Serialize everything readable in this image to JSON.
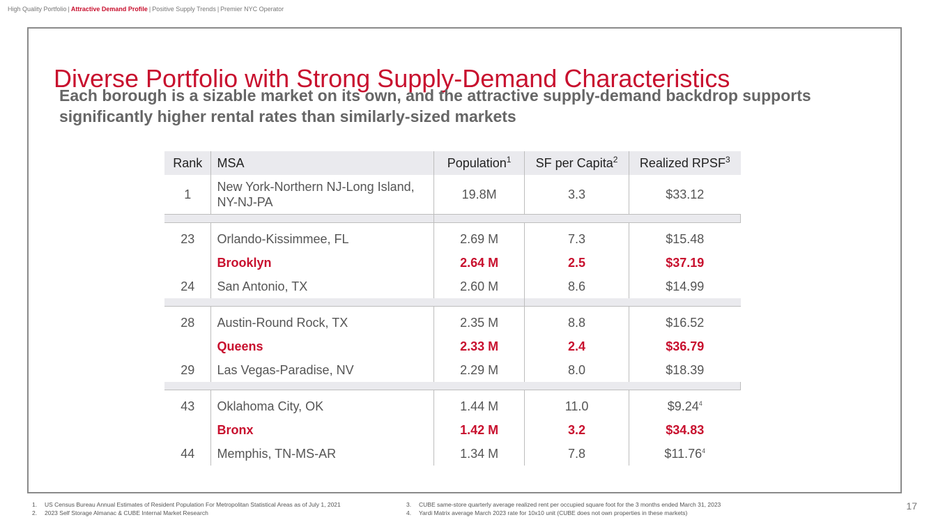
{
  "breadcrumb": {
    "items": [
      "High Quality Portfolio",
      "Attractive Demand Profile",
      "Positive Supply Trends",
      "Premier NYC Operator"
    ],
    "active_index": 1,
    "separator": "|"
  },
  "title": "Diverse Portfolio with Strong Supply-Demand Characteristics",
  "subtitle": "Each borough is a sizable market on its own, and the attractive supply-demand backdrop supports significantly higher rental rates than similarly-sized markets",
  "table": {
    "headers": {
      "rank": "Rank",
      "msa": "MSA",
      "population": "Population",
      "population_fn": "1",
      "sf_per_capita": "SF per Capita",
      "sf_per_capita_fn": "2",
      "rpsf": "Realized RPSF",
      "rpsf_fn": "3"
    },
    "rows": [
      {
        "rank": "1",
        "msa": "New York-Northern NJ-Long Island, NY-NJ-PA",
        "population": "19.8M",
        "sf": "3.3",
        "rpsf": "$33.12",
        "fn": ""
      },
      {
        "rank": "23",
        "msa": "Orlando-Kissimmee, FL",
        "population": "2.69 M",
        "sf": "7.3",
        "rpsf": "$15.48",
        "fn": ""
      },
      {
        "rank": "",
        "msa": "Brooklyn",
        "population": "2.64 M",
        "sf": "2.5",
        "rpsf": "$37.19",
        "fn": ""
      },
      {
        "rank": "24",
        "msa": "San Antonio, TX",
        "population": "2.60 M",
        "sf": "8.6",
        "rpsf": "$14.99",
        "fn": ""
      },
      {
        "rank": "28",
        "msa": "Austin-Round Rock, TX",
        "population": "2.35 M",
        "sf": "8.8",
        "rpsf": "$16.52",
        "fn": ""
      },
      {
        "rank": "",
        "msa": "Queens",
        "population": "2.33 M",
        "sf": "2.4",
        "rpsf": "$36.79",
        "fn": ""
      },
      {
        "rank": "29",
        "msa": "Las Vegas-Paradise, NV",
        "population": "2.29 M",
        "sf": "8.0",
        "rpsf": "$18.39",
        "fn": ""
      },
      {
        "rank": "43",
        "msa": "Oklahoma City, OK",
        "population": "1.44 M",
        "sf": "11.0",
        "rpsf": "$9.24",
        "fn": "4"
      },
      {
        "rank": "",
        "msa": "Bronx",
        "population": "1.42 M",
        "sf": "3.2",
        "rpsf": "$34.83",
        "fn": ""
      },
      {
        "rank": "44",
        "msa": "Memphis, TN-MS-AR",
        "population": "1.34 M",
        "sf": "7.8",
        "rpsf": "$11.76",
        "fn": "4"
      }
    ]
  },
  "footnotes": [
    {
      "num": "1.",
      "text": "US Census Bureau Annual Estimates of Resident Population For Metropolitan Statistical Areas as of July 1, 2021"
    },
    {
      "num": "2.",
      "text": "2023 Self Storage Almanac & CUBE Internal Market Research"
    },
    {
      "num": "3.",
      "text": "CUBE same-store quarterly average realized rent per occupied square foot for the 3 months ended March 31, 2023"
    },
    {
      "num": "4.",
      "text": "Yardi Matrix average March 2023 rate for 10x10 unit (CUBE does not own properties in these markets)"
    }
  ],
  "page_number": "17",
  "colors": {
    "accent": "#c8102e",
    "header_bg": "#eaeaee",
    "frame": "#8a8a8a"
  }
}
